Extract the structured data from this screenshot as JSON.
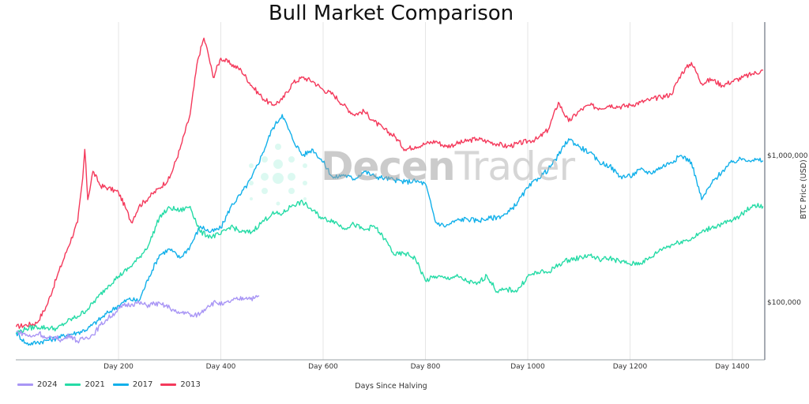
{
  "title": "Bull Market Comparison",
  "watermark": {
    "bold": "Decen",
    "light": "Trader"
  },
  "legend": [
    {
      "label": "2024",
      "color": "#a996f5"
    },
    {
      "label": "2021",
      "color": "#25dba6"
    },
    {
      "label": "2017",
      "color": "#12b0ea"
    },
    {
      "label": "2013",
      "color": "#f4395b"
    }
  ],
  "axes": {
    "xlabel": "Days Since Halving",
    "ylabel": "BTC Price (USD)",
    "xticks": [
      "Day 200",
      "Day 400",
      "Day 600",
      "Day 800",
      "Day 1000",
      "Day 1200",
      "Day 1400"
    ],
    "yticks": [
      "$1,000,000",
      "$100,000"
    ]
  },
  "chart_data": {
    "type": "line",
    "title": "Bull Market Comparison",
    "xlabel": "Days Since Halving",
    "ylabel": "BTC Price (USD)",
    "yscale": "log",
    "xlim": [
      0,
      1465
    ],
    "ylim": [
      40000,
      7500000
    ],
    "grid": {
      "x": true,
      "y": false
    },
    "legend_position": "bottom-left",
    "x_tick_values": [
      200,
      400,
      600,
      800,
      1000,
      1200,
      1400
    ],
    "x_tick_labels": [
      "Day 200",
      "Day 400",
      "Day 600",
      "Day 800",
      "Day 1000",
      "Day 1200",
      "Day 1400"
    ],
    "y_tick_values": [
      100000,
      1000000
    ],
    "y_tick_labels": [
      "$100,000",
      "$1,000,000"
    ],
    "series": [
      {
        "name": "2024",
        "color": "#a996f5",
        "x": [
          0,
          15,
          30,
          45,
          60,
          75,
          90,
          105,
          120,
          135,
          150,
          165,
          180,
          195,
          210,
          225,
          240,
          255,
          270,
          285,
          300,
          315,
          330,
          345,
          360,
          375,
          390,
          405,
          420,
          435,
          450,
          465,
          475
        ],
        "y": [
          63000,
          61000,
          58000,
          62000,
          56000,
          58000,
          55000,
          60000,
          54000,
          57000,
          60000,
          70000,
          78000,
          86000,
          95000,
          97000,
          99000,
          95000,
          98000,
          96000,
          92000,
          84000,
          86000,
          80000,
          84000,
          95000,
          100000,
          96000,
          102000,
          105000,
          108000,
          106000,
          110000
        ]
      },
      {
        "name": "2021",
        "color": "#25dba6",
        "x": [
          0,
          20,
          40,
          60,
          80,
          100,
          120,
          140,
          160,
          180,
          200,
          220,
          240,
          260,
          280,
          300,
          320,
          340,
          360,
          380,
          400,
          420,
          440,
          460,
          480,
          500,
          520,
          540,
          560,
          580,
          600,
          620,
          640,
          660,
          680,
          700,
          720,
          740,
          760,
          780,
          800,
          820,
          840,
          860,
          880,
          900,
          920,
          940,
          960,
          980,
          1000,
          1020,
          1040,
          1060,
          1080,
          1100,
          1120,
          1140,
          1160,
          1180,
          1200,
          1220,
          1240,
          1260,
          1280,
          1300,
          1320,
          1340,
          1360,
          1380,
          1400,
          1420,
          1440,
          1460
        ],
        "y": [
          62000,
          66000,
          68000,
          67000,
          66000,
          74000,
          80000,
          90000,
          108000,
          130000,
          150000,
          170000,
          200000,
          250000,
          380000,
          440000,
          420000,
          450000,
          300000,
          280000,
          290000,
          330000,
          300000,
          300000,
          350000,
          400000,
          400000,
          460000,
          480000,
          420000,
          370000,
          360000,
          320000,
          340000,
          310000,
          330000,
          270000,
          210000,
          215000,
          200000,
          140000,
          150000,
          145000,
          150000,
          140000,
          132000,
          152000,
          118000,
          122000,
          120000,
          150000,
          160000,
          160000,
          180000,
          195000,
          200000,
          210000,
          195000,
          200000,
          190000,
          182000,
          185000,
          200000,
          230000,
          245000,
          260000,
          270000,
          300000,
          325000,
          340000,
          360000,
          400000,
          460000,
          450000
        ]
      },
      {
        "name": "2017",
        "color": "#12b0ea",
        "x": [
          0,
          20,
          40,
          60,
          80,
          100,
          120,
          140,
          160,
          180,
          200,
          220,
          240,
          260,
          280,
          300,
          320,
          340,
          360,
          380,
          400,
          420,
          440,
          460,
          480,
          500,
          520,
          540,
          560,
          580,
          600,
          620,
          640,
          660,
          680,
          700,
          720,
          740,
          760,
          780,
          800,
          820,
          840,
          860,
          880,
          900,
          920,
          940,
          960,
          980,
          1000,
          1020,
          1040,
          1060,
          1080,
          1100,
          1120,
          1140,
          1160,
          1180,
          1200,
          1220,
          1240,
          1260,
          1280,
          1300,
          1320,
          1340,
          1360,
          1380,
          1400,
          1420,
          1440,
          1460
        ],
        "y": [
          62000,
          52000,
          53000,
          55000,
          57000,
          60000,
          62000,
          66000,
          75000,
          85000,
          95000,
          105000,
          102000,
          150000,
          210000,
          230000,
          200000,
          240000,
          330000,
          300000,
          320000,
          450000,
          550000,
          700000,
          1000000,
          1500000,
          1900000,
          1300000,
          1000000,
          1100000,
          900000,
          700000,
          740000,
          690000,
          780000,
          720000,
          700000,
          680000,
          660000,
          670000,
          640000,
          350000,
          330000,
          360000,
          370000,
          360000,
          370000,
          380000,
          400000,
          480000,
          600000,
          700000,
          800000,
          1000000,
          1300000,
          1150000,
          1050000,
          900000,
          850000,
          720000,
          720000,
          800000,
          760000,
          830000,
          900000,
          1000000,
          900000,
          500000,
          650000,
          780000,
          900000,
          950000,
          930000,
          920000
        ]
      },
      {
        "name": "2013",
        "color": "#f4395b",
        "x": [
          0,
          20,
          40,
          60,
          80,
          100,
          120,
          130,
          134,
          140,
          150,
          165,
          180,
          200,
          215,
          225,
          240,
          260,
          280,
          300,
          320,
          340,
          355,
          367,
          375,
          385,
          400,
          420,
          440,
          460,
          480,
          500,
          520,
          540,
          560,
          580,
          600,
          620,
          640,
          660,
          680,
          700,
          720,
          740,
          760,
          780,
          800,
          820,
          840,
          860,
          880,
          900,
          920,
          940,
          960,
          980,
          1000,
          1020,
          1040,
          1060,
          1080,
          1100,
          1120,
          1140,
          1160,
          1180,
          1200,
          1220,
          1240,
          1260,
          1280,
          1300,
          1320,
          1340,
          1360,
          1380,
          1400,
          1420,
          1440,
          1460
        ],
        "y": [
          68000,
          70000,
          72000,
          95000,
          150000,
          230000,
          350000,
          700000,
          1100000,
          500000,
          780000,
          620000,
          600000,
          560000,
          430000,
          350000,
          450000,
          520000,
          600000,
          700000,
          1100000,
          1900000,
          4500000,
          6300000,
          5000000,
          3400000,
          4600000,
          4200000,
          3800000,
          3000000,
          2500000,
          2200000,
          2400000,
          3100000,
          3400000,
          3200000,
          2800000,
          2600000,
          2200000,
          1900000,
          2000000,
          1700000,
          1500000,
          1350000,
          1100000,
          1150000,
          1200000,
          1250000,
          1150000,
          1200000,
          1250000,
          1300000,
          1250000,
          1200000,
          1150000,
          1200000,
          1250000,
          1300000,
          1500000,
          2300000,
          1700000,
          2000000,
          2200000,
          2100000,
          2200000,
          2150000,
          2200000,
          2300000,
          2400000,
          2500000,
          2600000,
          3600000,
          4300000,
          3100000,
          3300000,
          3000000,
          3200000,
          3400000,
          3600000,
          3800000
        ]
      }
    ]
  }
}
